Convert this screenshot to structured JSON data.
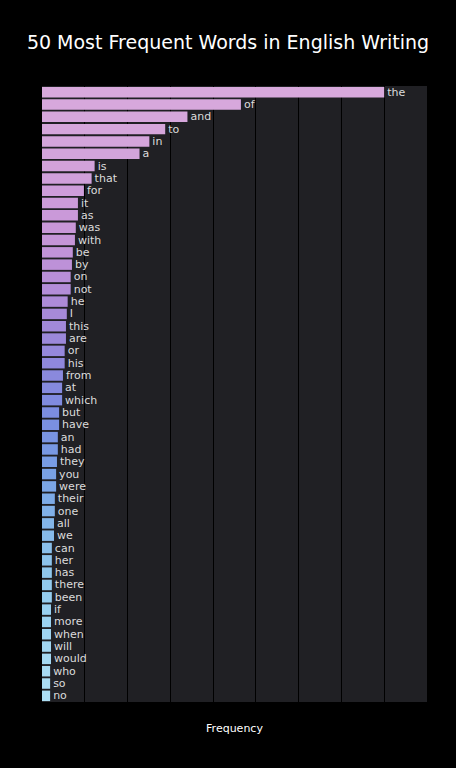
{
  "chart_data": {
    "type": "bar",
    "title": "50 Most Frequent Words in English Writing",
    "x_label": "Frequency",
    "orientation": "horizontal",
    "categories": [
      "the",
      "of",
      "and",
      "to",
      "in",
      "a",
      "is",
      "that",
      "for",
      "it",
      "as",
      "was",
      "with",
      "be",
      "by",
      "on",
      "not",
      "he",
      "I",
      "this",
      "are",
      "or",
      "his",
      "from",
      "at",
      "which",
      "but",
      "have",
      "an",
      "had",
      "they",
      "you",
      "were",
      "their",
      "one",
      "all",
      "we",
      "can",
      "her",
      "has",
      "there",
      "been",
      "if",
      "more",
      "when",
      "will",
      "would",
      "who",
      "so",
      "no"
    ],
    "values": [
      8.0,
      4.65,
      3.4,
      2.88,
      2.51,
      2.28,
      1.23,
      1.16,
      0.98,
      0.84,
      0.84,
      0.79,
      0.77,
      0.72,
      0.7,
      0.67,
      0.67,
      0.6,
      0.58,
      0.56,
      0.56,
      0.53,
      0.53,
      0.49,
      0.47,
      0.47,
      0.4,
      0.4,
      0.37,
      0.37,
      0.35,
      0.33,
      0.33,
      0.3,
      0.3,
      0.28,
      0.28,
      0.23,
      0.23,
      0.23,
      0.23,
      0.23,
      0.21,
      0.21,
      0.21,
      0.21,
      0.21,
      0.19,
      0.19,
      0.19
    ],
    "colors": [
      "#d8a9dc",
      "#d7a8dc",
      "#d6a7dc",
      "#d5a6db",
      "#d4a5db",
      "#d3a4db",
      "#d2a2da",
      "#d0a0da",
      "#ce9dda",
      "#cc9bd9",
      "#ca99d9",
      "#c897d8",
      "#c595d8",
      "#c193d8",
      "#bd91d8",
      "#b88fd8",
      "#b38dd8",
      "#ad8bd8",
      "#a78ad8",
      "#a189d9",
      "#9b88da",
      "#9588db",
      "#8f88dc",
      "#8a89dd",
      "#858ade",
      "#808bdf",
      "#7c8de0",
      "#7a90e1",
      "#7994e2",
      "#7898e3",
      "#789ce4",
      "#79a1e5",
      "#7ba6e6",
      "#7dabe7",
      "#80b0e8",
      "#83b5e9",
      "#86baea",
      "#89bfeb",
      "#8cc3ec",
      "#8fc7ed",
      "#92caee",
      "#95cdef",
      "#98d0f0",
      "#9bd2f0",
      "#9ed4f1",
      "#a1d6f1",
      "#a4d8f2",
      "#a7daf2",
      "#aadcf3",
      "#addef3"
    ],
    "xlim": [
      0,
      9
    ],
    "xticks": [
      0,
      1,
      2,
      3,
      4,
      5,
      6,
      7,
      8,
      9
    ],
    "grid": true,
    "tick_labels": false
  }
}
